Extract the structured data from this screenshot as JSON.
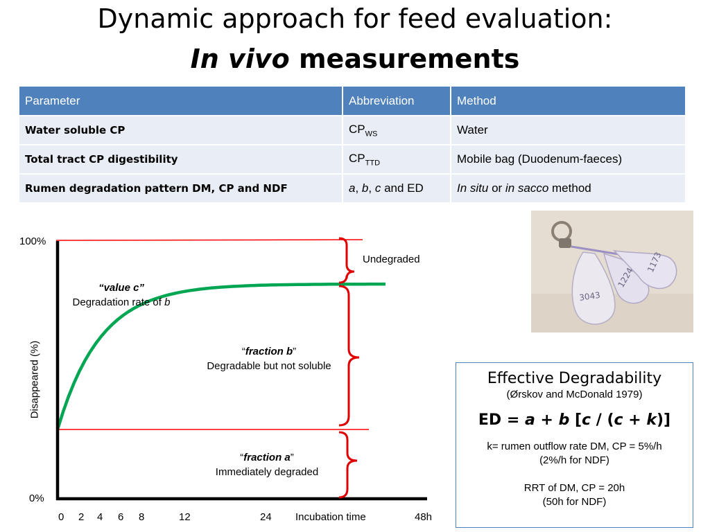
{
  "title": {
    "line1": "Dynamic approach for feed evaluation:",
    "line2_italic": "In vivo",
    "line2_rest": " measurements"
  },
  "table": {
    "headers": [
      "Parameter",
      "Abbreviation",
      "Method"
    ],
    "rows": [
      {
        "parameter": "Water soluble CP",
        "abbr_main": "CP",
        "abbr_sub": "WS",
        "method": "Water"
      },
      {
        "parameter": "Total tract CP digestibility",
        "abbr_main": "CP",
        "abbr_sub": "TTD",
        "method": "Mobile bag (Duodenum-faeces)"
      },
      {
        "parameter": "Rumen degradation pattern DM, CP and NDF",
        "abbr_a": "a",
        "abbr_b": "b",
        "abbr_c": "c",
        "abbr_and": " and ED",
        "method_i1": "In situ",
        "method_or": " or ",
        "method_i2": "in sacco",
        "method_end": " method"
      }
    ]
  },
  "chart_data": {
    "type": "line",
    "y_ticks": [
      "100%",
      "0%"
    ],
    "x_ticks": [
      "0",
      "2",
      "4",
      "6",
      "8",
      "12",
      "24",
      "48h"
    ],
    "xlabel": "Incubation time",
    "ylabel": "Disappeared (%)",
    "annotations": {
      "undegraded": "Undegraded",
      "value_c_title": "value c",
      "value_c_text": "Degradation rate of ",
      "value_c_var": "b",
      "fraction_b_title": "fraction b",
      "fraction_b_text": "Degradable but not soluble",
      "fraction_a_title": "fraction a",
      "fraction_a_text": "Immediately degraded"
    },
    "series": [
      {
        "a": 27,
        "b": 57,
        "c": 0.16
      }
    ],
    "colors": {
      "curve": "#00a651",
      "reference_lines": "#ff0000",
      "braces": "#e00000"
    }
  },
  "ed_box": {
    "heading": "Effective Degradability",
    "reference": "(Ørskov and McDonald 1979)",
    "eq_prefix": "ED = ",
    "eq_a": "a",
    "eq_plus": " + ",
    "eq_b": "b",
    "eq_br1": " [",
    "eq_c1": "c",
    "eq_div": " / (",
    "eq_c2": "c",
    "eq_plus2": " + ",
    "eq_k": "k",
    "eq_end": ")]",
    "k_line1": "k= rumen outflow rate DM, CP = 5%/h",
    "k_line2": "(2%/h for NDF)",
    "rrt_line1": "RRT of DM, CP = 20h",
    "rrt_line2": "(50h for NDF)"
  },
  "photo": {
    "labels": [
      "3043",
      "1224",
      "1173"
    ]
  }
}
